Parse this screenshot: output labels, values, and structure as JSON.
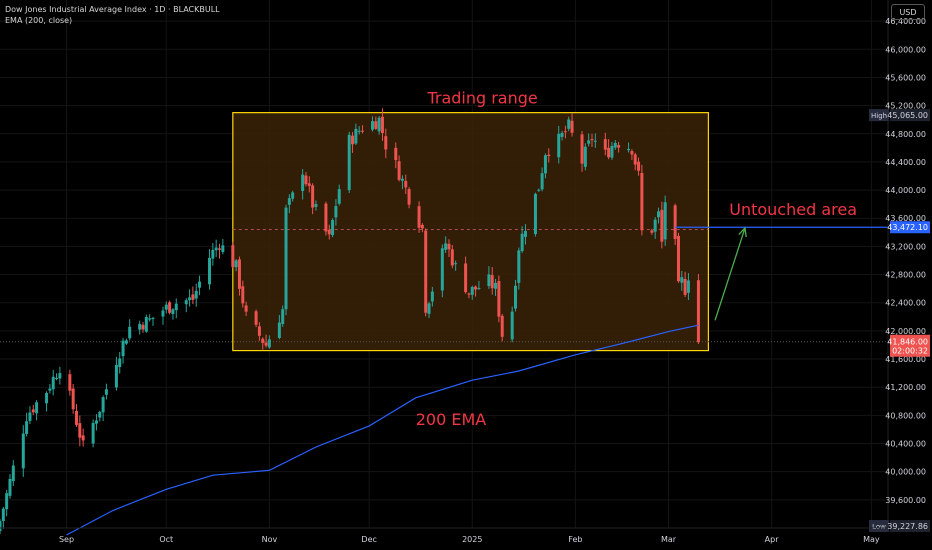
{
  "header": {
    "symbol_title": "Dow Jones Industrial Average Index · 1D · BLACKBULL",
    "indicator": "EMA (200, close)",
    "currency_button": "USD"
  },
  "colors": {
    "background": "#000000",
    "up_candle": "#26a69a",
    "down_candle": "#ef5350",
    "ema_line": "#2962ff",
    "range_box_fill": "#3b2208",
    "range_box_border": "#ffd700",
    "annotation_text": "#f23645",
    "arrow": "#4caf50",
    "level_line": "#2962ff",
    "axis_text": "#d1d4dc",
    "grid": "#141414"
  },
  "chart_data": {
    "type": "candlestick",
    "title": "Dow Jones Industrial Average Index · 1D · BLACKBULL",
    "ylim": [
      39200,
      46700
    ],
    "y_ticks": [
      39600,
      40000,
      40400,
      40800,
      41200,
      41600,
      42000,
      42400,
      42800,
      43200,
      43600,
      44000,
      44400,
      44800,
      45200,
      45600,
      46000,
      46400
    ],
    "y_tick_labels": [
      "39,600.00",
      "40,000.00",
      "40,400.00",
      "40,800.00",
      "41,200.00",
      "41,600.00",
      "42,000.00",
      "42,400.00",
      "42,800.00",
      "43,200.00",
      "43,600.00",
      "44,000.00",
      "44,400.00",
      "44,800.00",
      "45,200.00",
      "45,600.00",
      "46,000.00",
      "46,400.00"
    ],
    "x_start": "2024-08-12",
    "x_end": "2025-05-06",
    "x_ticks": [
      {
        "date": "2024-09-01",
        "label": "Sep"
      },
      {
        "date": "2024-10-01",
        "label": "Oct"
      },
      {
        "date": "2024-11-01",
        "label": "Nov"
      },
      {
        "date": "2024-12-01",
        "label": "Dec"
      },
      {
        "date": "2025-01-01",
        "label": "2025"
      },
      {
        "date": "2025-02-01",
        "label": "Feb"
      },
      {
        "date": "2025-03-01",
        "label": "Mar"
      },
      {
        "date": "2025-04-01",
        "label": "Apr"
      },
      {
        "date": "2025-05-01",
        "label": "May"
      }
    ],
    "anchors": [
      [
        "2024-08-12",
        39300
      ],
      [
        "2024-08-20",
        40800
      ],
      [
        "2024-08-26",
        41150
      ],
      [
        "2024-08-30",
        41500
      ],
      [
        "2024-09-03",
        40900
      ],
      [
        "2024-09-06",
        40350
      ],
      [
        "2024-09-11",
        40900
      ],
      [
        "2024-09-16",
        41600
      ],
      [
        "2024-09-20",
        42050
      ],
      [
        "2024-09-26",
        42150
      ],
      [
        "2024-09-30",
        42300
      ],
      [
        "2024-10-04",
        42400
      ],
      [
        "2024-10-09",
        42450
      ],
      [
        "2024-10-14",
        43050
      ],
      [
        "2024-10-17",
        43250
      ],
      [
        "2024-10-22",
        42900
      ],
      [
        "2024-10-25",
        42200
      ],
      [
        "2024-10-31",
        41800
      ],
      [
        "2024-11-05",
        42300
      ],
      [
        "2024-11-06",
        43700
      ],
      [
        "2024-11-08",
        43900
      ],
      [
        "2024-11-11",
        44300
      ],
      [
        "2024-11-14",
        43800
      ],
      [
        "2024-11-19",
        43300
      ],
      [
        "2024-11-21",
        43800
      ],
      [
        "2024-11-25",
        44700
      ],
      [
        "2024-11-29",
        44900
      ],
      [
        "2024-12-04",
        45000
      ],
      [
        "2024-12-06",
        44650
      ],
      [
        "2024-12-10",
        44250
      ],
      [
        "2024-12-13",
        43900
      ],
      [
        "2024-12-17",
        43450
      ],
      [
        "2024-12-18",
        42350
      ],
      [
        "2024-12-20",
        42600
      ],
      [
        "2024-12-24",
        43250
      ],
      [
        "2024-12-27",
        42900
      ],
      [
        "2024-12-31",
        42550
      ],
      [
        "2025-01-06",
        42700
      ],
      [
        "2025-01-08",
        42600
      ],
      [
        "2025-01-10",
        41950
      ],
      [
        "2025-01-13",
        42300
      ],
      [
        "2025-01-15",
        43200
      ],
      [
        "2025-01-17",
        43500
      ],
      [
        "2025-01-21",
        44050
      ],
      [
        "2025-01-23",
        44550
      ],
      [
        "2025-01-27",
        44700
      ],
      [
        "2025-01-30",
        44900
      ],
      [
        "2025-02-03",
        44400
      ],
      [
        "2025-02-06",
        44750
      ],
      [
        "2025-02-10",
        44500
      ],
      [
        "2025-02-13",
        44700
      ],
      [
        "2025-02-18",
        44600
      ],
      [
        "2025-02-20",
        44200
      ],
      [
        "2025-02-21",
        43400
      ],
      [
        "2025-02-24",
        43450
      ],
      [
        "2025-02-26",
        43650
      ],
      [
        "2025-02-27",
        43250
      ],
      [
        "2025-02-28",
        43850
      ],
      [
        "2025-03-03",
        43200
      ],
      [
        "2025-03-04",
        42600
      ],
      [
        "2025-03-05",
        42700
      ],
      [
        "2025-03-06",
        42600
      ],
      [
        "2025-03-07",
        42800
      ],
      [
        "2025-03-10",
        41846
      ]
    ],
    "series": [
      {
        "name": "EMA (200, close)",
        "points": [
          [
            "2024-09-01",
            39100
          ],
          [
            "2024-09-15",
            39450
          ],
          [
            "2024-10-01",
            39750
          ],
          [
            "2024-10-15",
            39950
          ],
          [
            "2024-11-01",
            40020
          ],
          [
            "2024-11-15",
            40350
          ],
          [
            "2024-12-01",
            40650
          ],
          [
            "2024-12-15",
            41050
          ],
          [
            "2025-01-01",
            41300
          ],
          [
            "2025-01-15",
            41430
          ],
          [
            "2025-02-01",
            41660
          ],
          [
            "2025-02-15",
            41820
          ],
          [
            "2025-03-01",
            41990
          ],
          [
            "2025-03-10",
            42080
          ]
        ]
      }
    ],
    "annotations": {
      "range_box": {
        "x0": "2024-10-21",
        "x1": "2025-03-13",
        "y0": 41720,
        "y1": 45100,
        "label": "Trading range"
      },
      "untouched_line": {
        "x0": "2025-03-03",
        "x1": "2025-05-10",
        "y": 43472.1
      },
      "untouched_label": "Untouched area",
      "ema_label": "200 EMA",
      "dashed_mid_level": 43440,
      "current_price_level": 41846,
      "arrow": {
        "from_date": "2025-03-15",
        "from_value": 42150,
        "to_date": "2025-03-24",
        "to_value": 43460
      }
    },
    "price_labels": {
      "high": {
        "tag": "High",
        "value": "45,065.00",
        "y": 45065
      },
      "level": {
        "value": "43,472.10",
        "y": 43472.1
      },
      "last": {
        "value": "41,846.00",
        "countdown": "02:00:32",
        "y": 41846
      },
      "low": {
        "tag": "Low",
        "value": "39,227.86",
        "y": 39227.86
      }
    }
  }
}
